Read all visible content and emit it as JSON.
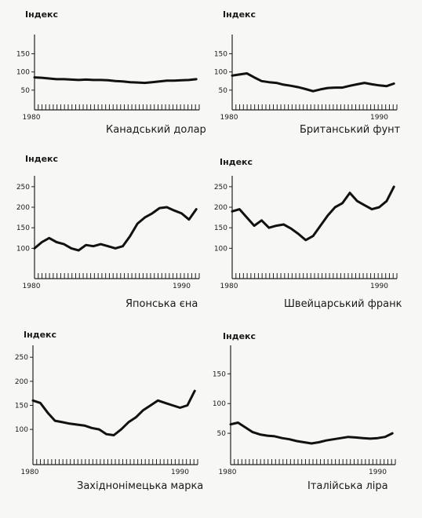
{
  "chart_data": [
    {
      "type": "line",
      "title": "Індекс",
      "caption": "Канадський долар",
      "x_start_label": "1980",
      "x_end_label": "",
      "yticks": [
        50,
        100,
        150
      ],
      "ylim": [
        0,
        190
      ],
      "xlim": [
        1980,
        1991.2
      ],
      "x": [
        1980,
        1980.5,
        1981,
        1981.5,
        1982,
        1982.5,
        1983,
        1983.5,
        1984,
        1984.5,
        1985,
        1985.5,
        1986,
        1986.5,
        1987,
        1987.5,
        1988,
        1988.5,
        1989,
        1989.5,
        1990,
        1990.5,
        1991
      ],
      "values": [
        85,
        84,
        82,
        80,
        80,
        79,
        78,
        79,
        78,
        78,
        77,
        75,
        74,
        72,
        71,
        70,
        72,
        74,
        76,
        76,
        77,
        78,
        80
      ]
    },
    {
      "type": "line",
      "title": "Індекс",
      "caption": "Британський фунт",
      "x_start_label": "1980",
      "x_end_label": "1990",
      "yticks": [
        50,
        100,
        150
      ],
      "ylim": [
        0,
        190
      ],
      "xlim": [
        1980,
        1991.2
      ],
      "x": [
        1980,
        1980.5,
        1981,
        1981.5,
        1982,
        1982.5,
        1983,
        1983.5,
        1984,
        1984.5,
        1985,
        1985.5,
        1986,
        1986.5,
        1987,
        1987.5,
        1988,
        1988.5,
        1989,
        1989.5,
        1990,
        1990.5,
        1991
      ],
      "values": [
        90,
        93,
        96,
        85,
        75,
        72,
        70,
        65,
        62,
        58,
        53,
        47,
        52,
        56,
        57,
        57,
        62,
        66,
        70,
        66,
        63,
        61,
        68
      ]
    },
    {
      "type": "line",
      "title": "Індекс",
      "caption": "Японська єна",
      "x_start_label": "1980",
      "x_end_label": "1990",
      "yticks": [
        100,
        150,
        200,
        250
      ],
      "ylim": [
        30,
        265
      ],
      "xlim": [
        1980,
        1991.2
      ],
      "x": [
        1980,
        1980.5,
        1981,
        1981.5,
        1982,
        1982.5,
        1983,
        1983.5,
        1984,
        1984.5,
        1985,
        1985.5,
        1986,
        1986.5,
        1987,
        1987.5,
        1988,
        1988.5,
        1989,
        1989.5,
        1990,
        1990.5,
        1991
      ],
      "values": [
        100,
        115,
        125,
        115,
        110,
        100,
        95,
        108,
        105,
        110,
        105,
        100,
        105,
        130,
        160,
        175,
        185,
        198,
        200,
        192,
        185,
        170,
        195
      ]
    },
    {
      "type": "line",
      "title": "Індекс",
      "caption": "Швейцарський франк",
      "x_start_label": "1980",
      "x_end_label": "1990",
      "yticks": [
        100,
        150,
        200,
        250
      ],
      "ylim": [
        30,
        265
      ],
      "xlim": [
        1980,
        1991.2
      ],
      "x": [
        1980,
        1980.5,
        1981,
        1981.5,
        1982,
        1982.5,
        1983,
        1983.5,
        1984,
        1984.5,
        1985,
        1985.5,
        1986,
        1986.5,
        1987,
        1987.5,
        1988,
        1988.5,
        1989,
        1989.5,
        1990,
        1990.5,
        1991
      ],
      "values": [
        190,
        195,
        175,
        155,
        168,
        150,
        155,
        158,
        148,
        135,
        120,
        130,
        155,
        180,
        200,
        210,
        235,
        215,
        205,
        195,
        200,
        215,
        250
      ]
    },
    {
      "type": "line",
      "title": "Індекс",
      "caption": "Західнонімецька марка",
      "x_start_label": "1980",
      "x_end_label": "1990",
      "yticks": [
        100,
        150,
        200,
        250
      ],
      "ylim": [
        30,
        265
      ],
      "xlim": [
        1980,
        1991.2
      ],
      "x": [
        1980,
        1980.5,
        1981,
        1981.5,
        1982,
        1982.5,
        1983,
        1983.5,
        1984,
        1984.5,
        1985,
        1985.5,
        1986,
        1986.5,
        1987,
        1987.5,
        1988,
        1988.5,
        1989,
        1989.5,
        1990,
        1990.5,
        1991
      ],
      "values": [
        160,
        155,
        135,
        118,
        115,
        112,
        110,
        108,
        103,
        100,
        90,
        88,
        100,
        115,
        125,
        140,
        150,
        160,
        155,
        150,
        145,
        150,
        180
      ]
    },
    {
      "type": "line",
      "title": "Індекс",
      "caption": "Італійська ліра",
      "x_start_label": "1980",
      "x_end_label": "1990",
      "yticks": [
        50,
        100,
        150
      ],
      "ylim": [
        0,
        190
      ],
      "xlim": [
        1980,
        1991.2
      ],
      "x": [
        1980,
        1980.5,
        1981,
        1981.5,
        1982,
        1982.5,
        1983,
        1983.5,
        1984,
        1984.5,
        1985,
        1985.5,
        1986,
        1986.5,
        1987,
        1987.5,
        1988,
        1988.5,
        1989,
        1989.5,
        1990,
        1990.5,
        1991
      ],
      "values": [
        65,
        68,
        60,
        52,
        48,
        46,
        45,
        42,
        40,
        37,
        35,
        33,
        35,
        38,
        40,
        42,
        44,
        43,
        42,
        41,
        42,
        44,
        50
      ]
    }
  ]
}
